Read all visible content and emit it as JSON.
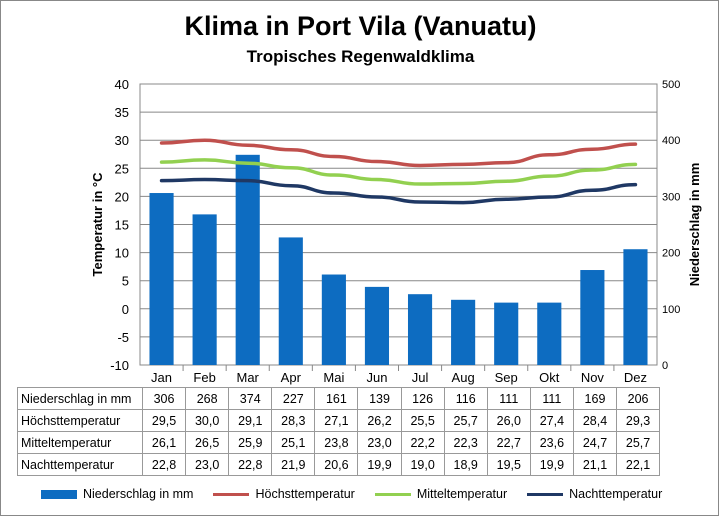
{
  "chart_data": {
    "type": "bar+line",
    "title": "Klima in Port Vila (Vanuatu)",
    "subtitle": "Tropisches  Regenwaldklima",
    "categories": [
      "Jan",
      "Feb",
      "Mar",
      "Apr",
      "Mai",
      "Jun",
      "Jul",
      "Aug",
      "Sep",
      "Okt",
      "Nov",
      "Dez"
    ],
    "ylabel_left": "Temperatur in °C",
    "ylabel_right": "Niederschlag in mm",
    "ylim_left": [
      -10,
      40
    ],
    "ylim_right": [
      0,
      500
    ],
    "yticks_left": [
      "40",
      "35",
      "30",
      "25",
      "20",
      "15",
      "10",
      "5",
      "0",
      "-5",
      "-10"
    ],
    "yticks_right": [
      "500",
      "400",
      "300",
      "200",
      "100",
      "0"
    ],
    "grid": true,
    "legend_position": "bottom",
    "series": [
      {
        "name": "Niederschlag in mm",
        "type": "bar",
        "axis": "right",
        "color": "#0d6cc1",
        "values": [
          306,
          268,
          374,
          227,
          161,
          139,
          126,
          116,
          111,
          111,
          169,
          206
        ]
      },
      {
        "name": "Höchsttemperatur",
        "type": "line",
        "axis": "left",
        "color": "#c0504d",
        "values": [
          29.5,
          30.0,
          29.1,
          28.3,
          27.1,
          26.2,
          25.5,
          25.7,
          26.0,
          27.4,
          28.4,
          29.3
        ]
      },
      {
        "name": "Mitteltemperatur",
        "type": "line",
        "axis": "left",
        "color": "#92d050",
        "values": [
          26.1,
          26.5,
          25.9,
          25.1,
          23.8,
          23.0,
          22.2,
          22.3,
          22.7,
          23.6,
          24.7,
          25.7
        ]
      },
      {
        "name": "Nachttemperatur",
        "type": "line",
        "axis": "left",
        "color": "#1f3864",
        "values": [
          22.8,
          23.0,
          22.8,
          21.9,
          20.6,
          19.9,
          19.0,
          18.9,
          19.5,
          19.9,
          21.1,
          22.1
        ]
      }
    ],
    "table_rows": [
      {
        "label": "Niederschlag in mm",
        "cells": [
          "306",
          "268",
          "374",
          "227",
          "161",
          "139",
          "126",
          "116",
          "111",
          "111",
          "169",
          "206"
        ]
      },
      {
        "label": "Höchsttemperatur",
        "cells": [
          "29,5",
          "30,0",
          "29,1",
          "28,3",
          "27,1",
          "26,2",
          "25,5",
          "25,7",
          "26,0",
          "27,4",
          "28,4",
          "29,3"
        ]
      },
      {
        "label": "Mitteltemperatur",
        "cells": [
          "26,1",
          "26,5",
          "25,9",
          "25,1",
          "23,8",
          "23,0",
          "22,2",
          "22,3",
          "22,7",
          "23,6",
          "24,7",
          "25,7"
        ]
      },
      {
        "label": "Nachttemperatur",
        "cells": [
          "22,8",
          "23,0",
          "22,8",
          "21,9",
          "20,6",
          "19,9",
          "19,0",
          "18,9",
          "19,5",
          "19,9",
          "21,1",
          "22,1"
        ]
      }
    ]
  }
}
